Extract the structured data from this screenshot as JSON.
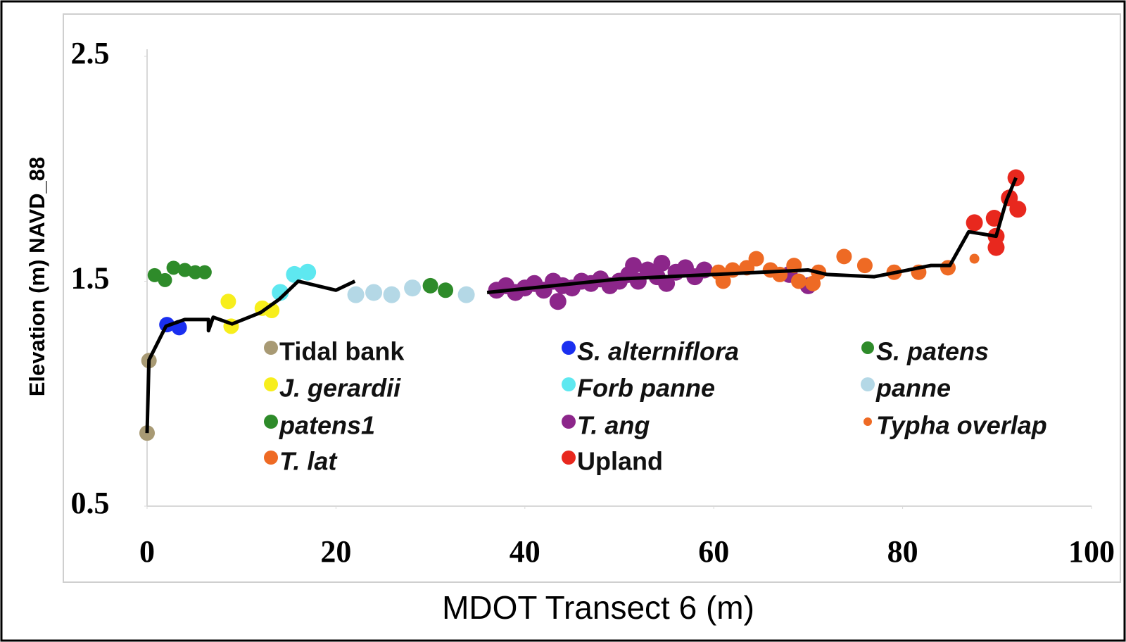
{
  "chart_data": {
    "type": "scatter",
    "xlabel": "MDOT Transect 6 (m)",
    "ylabel": "Elevation (m) NAVD_88",
    "xlim": [
      0,
      100
    ],
    "xticks": [
      0,
      20,
      40,
      60,
      80,
      100
    ],
    "ylim": [
      0.5,
      2.5
    ],
    "yticks": [
      0.5,
      1.5,
      2.5
    ],
    "line": {
      "color": "#000000",
      "x": [
        0,
        0.2,
        2,
        4,
        6.5,
        6.5,
        7,
        9,
        12,
        14,
        16,
        20,
        22,
        null,
        36,
        50,
        70,
        72,
        77,
        83,
        85,
        87,
        89.9,
        91,
        92
      ],
      "y": [
        0.825,
        1.15,
        1.3,
        1.33,
        1.33,
        1.28,
        1.34,
        1.31,
        1.36,
        1.42,
        1.5,
        1.46,
        1.5,
        null,
        1.45,
        1.51,
        1.55,
        1.53,
        1.52,
        1.57,
        1.57,
        1.72,
        1.7,
        1.86,
        1.96
      ]
    },
    "series": [
      {
        "name": "Tidal bank",
        "color": "#a89a74",
        "italic": false,
        "marker_size": 11,
        "x": [
          0,
          0.2
        ],
        "y": [
          0.825,
          1.147
        ]
      },
      {
        "name": "S. alterniflora",
        "color": "#1a2ff0",
        "italic": true,
        "marker_size": 11,
        "x": [
          2.1,
          3.4
        ],
        "y": [
          1.307,
          1.294
        ]
      },
      {
        "name": "S. patens",
        "color": "#2e8b2a",
        "italic": true,
        "marker_size": 10,
        "x": [
          0.8,
          1.9,
          2.8,
          4.0,
          5.1,
          6.1
        ],
        "y": [
          1.527,
          1.505,
          1.56,
          1.55,
          1.54,
          1.54
        ]
      },
      {
        "name": "J. gerardii",
        "color": "#f7ee1c",
        "italic": true,
        "marker_size": 11,
        "x": [
          8.6,
          8.9,
          12.2,
          13.2
        ],
        "y": [
          1.41,
          1.3,
          1.38,
          1.37
        ]
      },
      {
        "name": "Forb panne",
        "color": "#5ee8f0",
        "italic": true,
        "marker_size": 12,
        "x": [
          14.1,
          15.6,
          17.0
        ],
        "y": [
          1.45,
          1.53,
          1.54
        ]
      },
      {
        "name": "panne",
        "color": "#b4d8e6",
        "italic": true,
        "marker_size": 12,
        "x": [
          22.1,
          24,
          25.9,
          28.1,
          33.8
        ],
        "y": [
          1.44,
          1.45,
          1.44,
          1.47,
          1.44
        ]
      },
      {
        "name": "patens1",
        "color": "#2e8b2a",
        "italic": true,
        "marker_size": 11,
        "x": [
          30,
          31.6
        ],
        "y": [
          1.48,
          1.46
        ]
      },
      {
        "name": "T. ang",
        "color": "#8c268a",
        "italic": true,
        "marker_size": 12,
        "x": [
          37,
          38,
          39,
          40,
          41,
          42,
          43,
          43.5,
          44,
          45,
          46,
          47,
          48,
          49,
          50,
          51,
          51.5,
          52,
          53,
          54,
          54.5,
          55,
          56,
          57,
          58,
          59,
          68,
          70
        ],
        "y": [
          1.46,
          1.48,
          1.45,
          1.47,
          1.49,
          1.46,
          1.5,
          1.41,
          1.48,
          1.47,
          1.5,
          1.49,
          1.51,
          1.48,
          1.5,
          1.53,
          1.57,
          1.5,
          1.55,
          1.52,
          1.58,
          1.49,
          1.54,
          1.56,
          1.52,
          1.55,
          1.53,
          1.48
        ]
      },
      {
        "name": "Typha overlap",
        "color": "#ee6a24",
        "italic": true,
        "marker_size": 7,
        "x": [
          87.6
        ],
        "y": [
          1.6
        ]
      },
      {
        "name": "T. lat",
        "color": "#ee6a24",
        "italic": true,
        "marker_size": 11,
        "x": [
          60.5,
          61,
          62,
          63.5,
          64.5,
          66,
          67,
          68.5,
          69,
          70.5,
          71.1,
          73.8,
          76.0,
          79.1,
          81.7,
          84.8
        ],
        "y": [
          1.54,
          1.5,
          1.55,
          1.56,
          1.6,
          1.55,
          1.53,
          1.57,
          1.5,
          1.49,
          1.54,
          1.61,
          1.57,
          1.54,
          1.54,
          1.56
        ]
      },
      {
        "name": "Upland",
        "color": "#e8281e",
        "italic": false,
        "marker_size": 12,
        "x": [
          87.6,
          89.7,
          89.9,
          89.9,
          91.3,
          92.0,
          92.2
        ],
        "y": [
          1.76,
          1.78,
          1.7,
          1.65,
          1.87,
          1.96,
          1.82
        ]
      }
    ]
  }
}
